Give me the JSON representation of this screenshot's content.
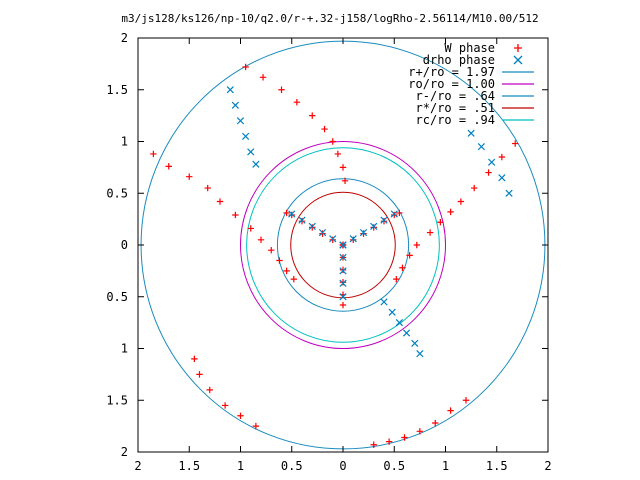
{
  "chart_data": {
    "type": "scatter",
    "title": "m3/js128/ks126/np-10/q2.0/r-+.32-j158/logRho-2.56114/M10.00/512",
    "xlim": [
      -2,
      2
    ],
    "ylim": [
      -2,
      2
    ],
    "x_tick_labels": [
      "2",
      "1.5",
      "1",
      "0.5",
      "0",
      "0.5",
      "1",
      "1.5",
      "2"
    ],
    "y_tick_labels": [
      "2",
      "1.5",
      "1",
      "0.5",
      "0",
      "0.5",
      "1",
      "1.5",
      "2"
    ],
    "legend_position": "top-right",
    "grid": false,
    "legend": [
      {
        "label": "W phase",
        "color": "#ff0000",
        "marker": "plus"
      },
      {
        "label": "drho phase",
        "color": "#0080c0",
        "marker": "cross"
      },
      {
        "label": "r+/ro = 1.97",
        "color": "#1a8bbd",
        "marker": "line"
      },
      {
        "label": "ro/ro = 1.00",
        "color": "#c000c0",
        "marker": "line"
      },
      {
        "label": "r-/ro = .64",
        "color": "#1a8bbd",
        "marker": "line"
      },
      {
        "label": "r*/ro = .51",
        "color": "#c00000",
        "marker": "line"
      },
      {
        "label": "rc/ro = .94",
        "color": "#00c0c0",
        "marker": "line"
      }
    ],
    "circles": [
      {
        "name": "r+/ro",
        "radius": 1.97,
        "color": "#1a8bbd"
      },
      {
        "name": "ro/ro",
        "radius": 1.0,
        "color": "#c000c0"
      },
      {
        "name": "r-/ro",
        "radius": 0.64,
        "color": "#1a8bbd"
      },
      {
        "name": "r*/ro",
        "radius": 0.51,
        "color": "#c00000"
      },
      {
        "name": "rc/ro",
        "radius": 0.94,
        "color": "#00c0c0"
      }
    ],
    "series": [
      {
        "name": "W phase",
        "color": "#ff0000",
        "arms": [
          {
            "points": [
              [
                0.0,
                0.0
              ],
              [
                -0.1,
                0.05
              ],
              [
                -0.2,
                0.11
              ],
              [
                -0.3,
                0.17
              ],
              [
                -0.4,
                0.23
              ],
              [
                -0.5,
                0.29
              ],
              [
                -0.55,
                0.31
              ]
            ]
          },
          {
            "points": [
              [
                0.0,
                0.0
              ],
              [
                0.1,
                0.05
              ],
              [
                0.2,
                0.11
              ],
              [
                0.3,
                0.17
              ],
              [
                0.4,
                0.23
              ],
              [
                0.5,
                0.29
              ],
              [
                0.55,
                0.31
              ]
            ]
          },
          {
            "points": [
              [
                0.0,
                0.0
              ],
              [
                0.0,
                -0.12
              ],
              [
                0.0,
                -0.24
              ],
              [
                0.0,
                -0.36
              ],
              [
                0.0,
                -0.48
              ],
              [
                0.0,
                -0.58
              ]
            ]
          },
          {
            "points": [
              [
                -0.48,
                -0.33
              ],
              [
                -0.55,
                -0.25
              ],
              [
                -0.62,
                -0.15
              ],
              [
                -0.7,
                -0.05
              ],
              [
                -0.8,
                0.05
              ],
              [
                -0.9,
                0.16
              ],
              [
                -1.05,
                0.29
              ],
              [
                -1.2,
                0.42
              ],
              [
                -1.32,
                0.55
              ],
              [
                -1.5,
                0.66
              ],
              [
                -1.7,
                0.76
              ],
              [
                -1.85,
                0.88
              ]
            ]
          },
          {
            "points": [
              [
                0.52,
                -0.33
              ],
              [
                0.58,
                -0.22
              ],
              [
                0.65,
                -0.1
              ],
              [
                0.72,
                0.0
              ],
              [
                0.85,
                0.12
              ],
              [
                0.95,
                0.22
              ],
              [
                1.05,
                0.32
              ],
              [
                1.15,
                0.42
              ],
              [
                1.28,
                0.55
              ],
              [
                1.42,
                0.7
              ],
              [
                1.55,
                0.85
              ],
              [
                1.68,
                0.98
              ]
            ]
          },
          {
            "points": [
              [
                0.02,
                0.62
              ],
              [
                0.0,
                0.75
              ],
              [
                -0.05,
                0.88
              ],
              [
                -0.1,
                1.0
              ],
              [
                -0.18,
                1.12
              ],
              [
                -0.3,
                1.25
              ],
              [
                -0.45,
                1.38
              ],
              [
                -0.6,
                1.5
              ],
              [
                -0.78,
                1.62
              ],
              [
                -0.95,
                1.72
              ]
            ]
          },
          {
            "points": [
              [
                1.2,
                -1.5
              ],
              [
                1.05,
                -1.6
              ],
              [
                0.9,
                -1.72
              ],
              [
                0.75,
                -1.8
              ],
              [
                0.6,
                -1.86
              ],
              [
                0.45,
                -1.9
              ],
              [
                0.3,
                -1.93
              ]
            ]
          },
          {
            "points": [
              [
                -1.45,
                -1.1
              ],
              [
                -1.4,
                -1.25
              ],
              [
                -1.3,
                -1.4
              ],
              [
                -1.15,
                -1.55
              ],
              [
                -1.0,
                -1.65
              ],
              [
                -0.85,
                -1.75
              ]
            ]
          }
        ]
      },
      {
        "name": "drho phase",
        "color": "#0080c0",
        "arms": [
          {
            "points": [
              [
                0.0,
                0.0
              ],
              [
                -0.1,
                0.06
              ],
              [
                -0.2,
                0.12
              ],
              [
                -0.3,
                0.18
              ],
              [
                -0.4,
                0.24
              ],
              [
                -0.5,
                0.3
              ]
            ]
          },
          {
            "points": [
              [
                0.0,
                0.0
              ],
              [
                0.1,
                0.06
              ],
              [
                0.2,
                0.12
              ],
              [
                0.3,
                0.18
              ],
              [
                0.4,
                0.24
              ],
              [
                0.5,
                0.3
              ]
            ]
          },
          {
            "points": [
              [
                0.0,
                0.0
              ],
              [
                0.0,
                -0.12
              ],
              [
                0.0,
                -0.25
              ],
              [
                0.0,
                -0.37
              ],
              [
                0.0,
                -0.5
              ]
            ]
          },
          {
            "points": [
              [
                0.75,
                -1.05
              ],
              [
                0.7,
                -0.95
              ],
              [
                0.62,
                -0.85
              ],
              [
                0.55,
                -0.75
              ],
              [
                0.48,
                -0.65
              ],
              [
                0.4,
                -0.55
              ]
            ]
          },
          {
            "points": [
              [
                -0.85,
                0.78
              ],
              [
                -0.9,
                0.9
              ],
              [
                -0.95,
                1.05
              ],
              [
                -1.0,
                1.2
              ],
              [
                -1.05,
                1.35
              ],
              [
                -1.1,
                1.5
              ]
            ]
          },
          {
            "points": [
              [
                1.25,
                1.08
              ],
              [
                1.35,
                0.95
              ],
              [
                1.45,
                0.8
              ],
              [
                1.55,
                0.65
              ],
              [
                1.62,
                0.5
              ]
            ]
          }
        ]
      }
    ]
  }
}
